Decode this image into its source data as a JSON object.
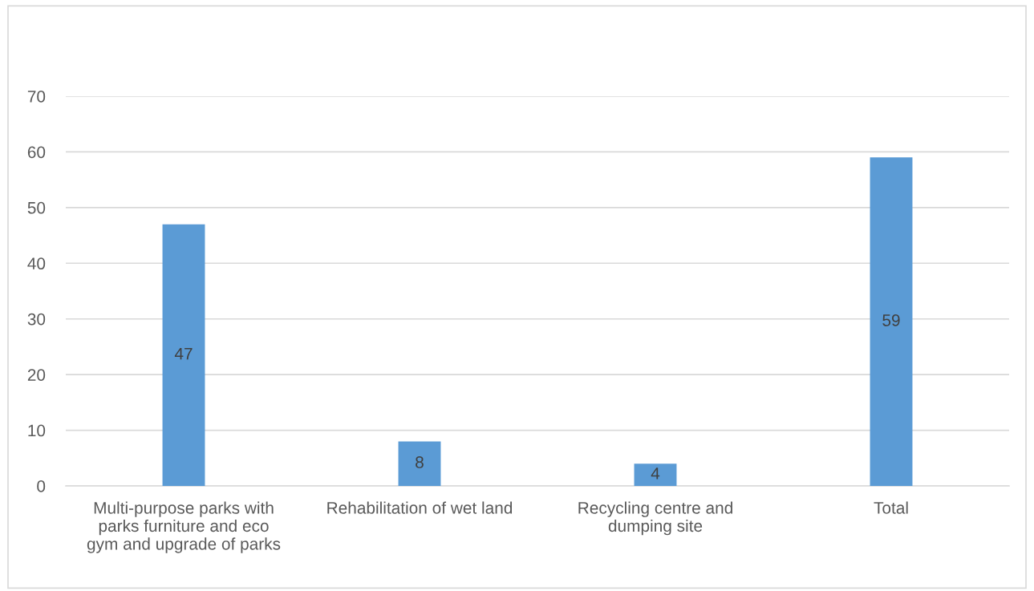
{
  "chart_data": {
    "type": "bar",
    "categories": [
      "Multi-purpose parks with\nparks furniture and eco\ngym and upgrade of parks",
      "Rehabilitation of wet land",
      "Recycling centre and\ndumping site",
      "Total"
    ],
    "values": [
      47,
      8,
      4,
      59
    ],
    "color": "#5b9bd5",
    "ylim": [
      0,
      70
    ],
    "yticks": [
      0,
      10,
      20,
      30,
      40,
      50,
      60,
      70
    ],
    "grid": "y",
    "data_labels": true,
    "legend": false
  }
}
